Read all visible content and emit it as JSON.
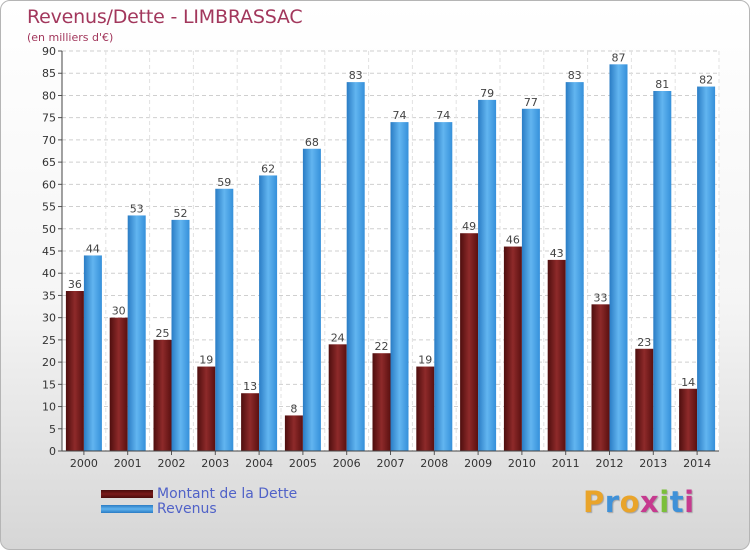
{
  "chart_data": {
    "type": "bar",
    "title": "Revenus/Dette - LIMBRASSAC",
    "subtitle": "(en milliers d'€)",
    "categories": [
      "2000",
      "2001",
      "2002",
      "2003",
      "2004",
      "2005",
      "2006",
      "2007",
      "2008",
      "2009",
      "2010",
      "2011",
      "2012",
      "2013",
      "2014"
    ],
    "series": [
      {
        "name": "Montant de la Dette",
        "color": "#7a1b1b",
        "values": [
          36,
          30,
          25,
          19,
          13,
          8,
          24,
          22,
          19,
          49,
          46,
          43,
          33,
          23,
          14
        ]
      },
      {
        "name": "Revenus",
        "color": "#4aa3e8",
        "values": [
          44,
          53,
          52,
          59,
          62,
          68,
          83,
          74,
          74,
          79,
          77,
          83,
          87,
          81,
          82
        ]
      }
    ],
    "ylim": [
      0,
      90
    ],
    "ystep": 5,
    "grid": true,
    "legend": "bottom-left"
  },
  "logo": {
    "letters": [
      "P",
      "r",
      "o",
      "x",
      "i",
      "t",
      "i"
    ],
    "colors": [
      "#e9a42a",
      "#3f91d8",
      "#e9a42a",
      "#c63a8f",
      "#7bbf3a",
      "#3f91d8",
      "#c63a8f"
    ]
  }
}
